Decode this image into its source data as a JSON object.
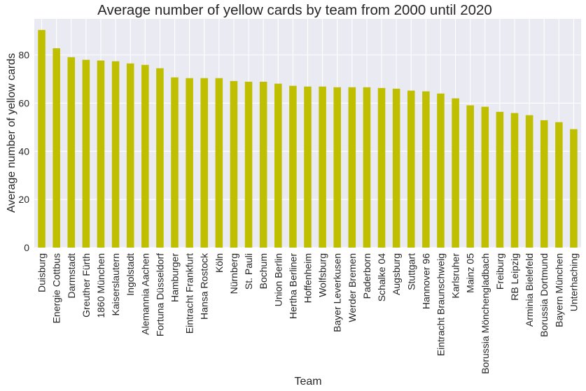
{
  "chart_data": {
    "type": "bar",
    "title": "Average number of yellow cards by team from 2000 until 2020",
    "xlabel": "Team",
    "ylabel": "Average number of yellow cards",
    "ylim": [
      0,
      95
    ],
    "yticks": [
      0,
      20,
      40,
      60,
      80
    ],
    "ytick_labels": [
      "0",
      "20",
      "40",
      "60",
      "80"
    ],
    "grid": true,
    "bar_color": "#bfbf00",
    "background_color": "#eaeaf2",
    "categories": [
      "Duisburg",
      "Energie Cottbus",
      "Darmstadt",
      "Greuther Fürth",
      "1860 München",
      "Kaiserslautern",
      "Ingolstadt",
      "Alemannia Aachen",
      "Fortuna Düsseldorf",
      "Hamburger",
      "Eintracht Frankfurt",
      "Hansa Rostock",
      "Köln",
      "Nürnberg",
      "St. Pauli",
      "Bochum",
      "Union Berlin",
      "Hertha Berliner",
      "Hoffenheim",
      "Wolfsburg",
      "Bayer Leverkusen",
      "Werder Bremen",
      "Paderborn",
      "Schalke 04",
      "Augsburg",
      "Stuttgart",
      "Hannover 96",
      "Eintracht Braunschweig",
      "Karlsruher",
      "Mainz 05",
      "Borussia Mönchengladbach",
      "Freiburg",
      "RB Leipzig",
      "Arminia Bielefeld",
      "Borussia Dortmund",
      "Bayern München",
      "Unterhaching"
    ],
    "values": [
      90.4,
      82.8,
      79.1,
      78.0,
      77.7,
      77.4,
      76.5,
      75.9,
      74.5,
      70.7,
      70.4,
      70.4,
      70.4,
      69.2,
      68.9,
      68.9,
      68.1,
      67.2,
      66.9,
      66.9,
      66.6,
      66.6,
      66.6,
      66.3,
      66.0,
      65.2,
      64.9,
      64.0,
      62.0,
      59.1,
      58.5,
      56.4,
      55.9,
      55.0,
      52.9,
      52.1,
      49.2
    ]
  }
}
